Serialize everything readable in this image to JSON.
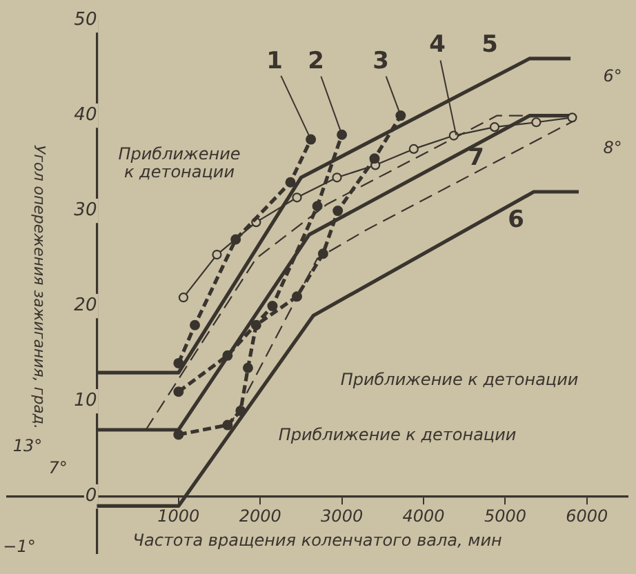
{
  "chart_data": {
    "type": "line",
    "xlabel": "Частота вращения коленчатого вала, мин",
    "ylabel": "Угол опережения зажигания, град.",
    "xlim": [
      -1100,
      6500
    ],
    "ylim": [
      -6,
      50
    ],
    "xticks": [
      1000,
      2000,
      3000,
      4000,
      5000,
      6000
    ],
    "yticks": [
      0,
      10,
      20,
      30,
      40,
      50
    ],
    "grid": false,
    "legend": false,
    "series": [
      {
        "name": "1",
        "color": "#3a342e",
        "line_style": "dashed",
        "marker": "circle",
        "x": [
          1000,
          1200,
          1700,
          2370,
          2620
        ],
        "values": [
          14,
          18,
          27,
          33,
          37.5
        ]
      },
      {
        "name": "2",
        "color": "#3a342e",
        "line_style": "dashed",
        "marker": "circle",
        "x": [
          1000,
          1600,
          2150,
          2700,
          3000
        ],
        "values": [
          11,
          14.8,
          20,
          30.5,
          38
        ]
      },
      {
        "name": "3",
        "color": "#3a342e",
        "line_style": "dashed",
        "marker": "circle",
        "x": [
          1000,
          1600,
          1760,
          1850,
          1950,
          2450,
          2770,
          2950,
          3400,
          3720
        ],
        "values": [
          6.5,
          7.5,
          9,
          13.5,
          18,
          21,
          25.5,
          30,
          35.5,
          40
        ]
      },
      {
        "name": "4",
        "color": "#3a342e",
        "line_style": "solid",
        "marker": "circle",
        "x": [
          1060,
          1470,
          1950,
          2450,
          2940,
          3410,
          3880,
          4370,
          4870,
          5380,
          5820
        ],
        "values": [
          20.9,
          25.4,
          28.8,
          31.4,
          33.5,
          34.8,
          36.5,
          37.9,
          38.8,
          39.3,
          39.8
        ]
      },
      {
        "name": "5",
        "color": "#3a342e",
        "line_style": "solid",
        "marker": "none",
        "x": [
          0,
          1000,
          2500,
          5300,
          5800
        ],
        "values": [
          13,
          13,
          33.5,
          46,
          46
        ]
      },
      {
        "name": "6",
        "color": "#3a342e",
        "line_style": "solid",
        "marker": "none",
        "x": [
          0,
          1000,
          2650,
          5350,
          5900
        ],
        "values": [
          -1,
          -1,
          19,
          32,
          32
        ]
      },
      {
        "name": "7",
        "color": "#3a342e",
        "line_style": "solid",
        "marker": "none",
        "x": [
          0,
          1000,
          2600,
          5300,
          5800
        ],
        "values": [
          7,
          7,
          27.5,
          40,
          40
        ]
      },
      {
        "color": "#3a342e",
        "line_style": "dashed",
        "marker": "none",
        "x": [
          600,
          1950,
          2820,
          4900,
          5800
        ],
        "values": [
          7,
          25,
          30.7,
          40,
          40
        ]
      },
      {
        "color": "#3a342e",
        "line_style": "dashed",
        "marker": "none",
        "x": [
          1600,
          2700,
          3300,
          5850
        ],
        "values": [
          7,
          25,
          28,
          39.5
        ]
      }
    ],
    "annotations": [
      "Приближение\nк детонации",
      "Приближение к детонации",
      "Приближение к детонации",
      "6°",
      "8°",
      "13°",
      "7°",
      "−1°"
    ]
  }
}
